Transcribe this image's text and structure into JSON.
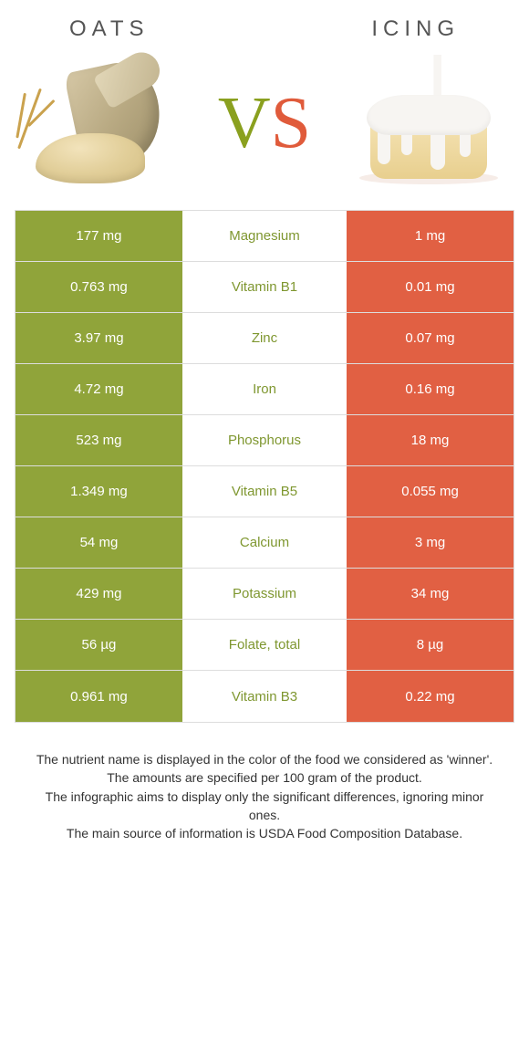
{
  "header": {
    "left_title": "Oats",
    "right_title": "Icing"
  },
  "vs": {
    "v": "V",
    "s": "S"
  },
  "colors": {
    "oats_cell_bg": "#90a43a",
    "icing_cell_bg": "#e16043",
    "winner_text_oats": "#7f9730",
    "winner_text_icing": "#e16043",
    "row_border": "#dddddd"
  },
  "nutrients": [
    {
      "name": "Magnesium",
      "left": "177 mg",
      "right": "1 mg",
      "winner": "oats"
    },
    {
      "name": "Vitamin B1",
      "left": "0.763 mg",
      "right": "0.01 mg",
      "winner": "oats"
    },
    {
      "name": "Zinc",
      "left": "3.97 mg",
      "right": "0.07 mg",
      "winner": "oats"
    },
    {
      "name": "Iron",
      "left": "4.72 mg",
      "right": "0.16 mg",
      "winner": "oats"
    },
    {
      "name": "Phosphorus",
      "left": "523 mg",
      "right": "18 mg",
      "winner": "oats"
    },
    {
      "name": "Vitamin B5",
      "left": "1.349 mg",
      "right": "0.055 mg",
      "winner": "oats"
    },
    {
      "name": "Calcium",
      "left": "54 mg",
      "right": "3 mg",
      "winner": "oats"
    },
    {
      "name": "Potassium",
      "left": "429 mg",
      "right": "34 mg",
      "winner": "oats"
    },
    {
      "name": "Folate, total",
      "left": "56 µg",
      "right": "8 µg",
      "winner": "oats"
    },
    {
      "name": "Vitamin B3",
      "left": "0.961 mg",
      "right": "0.22 mg",
      "winner": "oats"
    }
  ],
  "footnotes": [
    "The nutrient name is displayed in the color of the food we considered as 'winner'.",
    "The amounts are specified per 100 gram of the product.",
    "The infographic aims to display only the significant differences, ignoring minor ones.",
    "The main source of information is USDA Food Composition Database."
  ]
}
